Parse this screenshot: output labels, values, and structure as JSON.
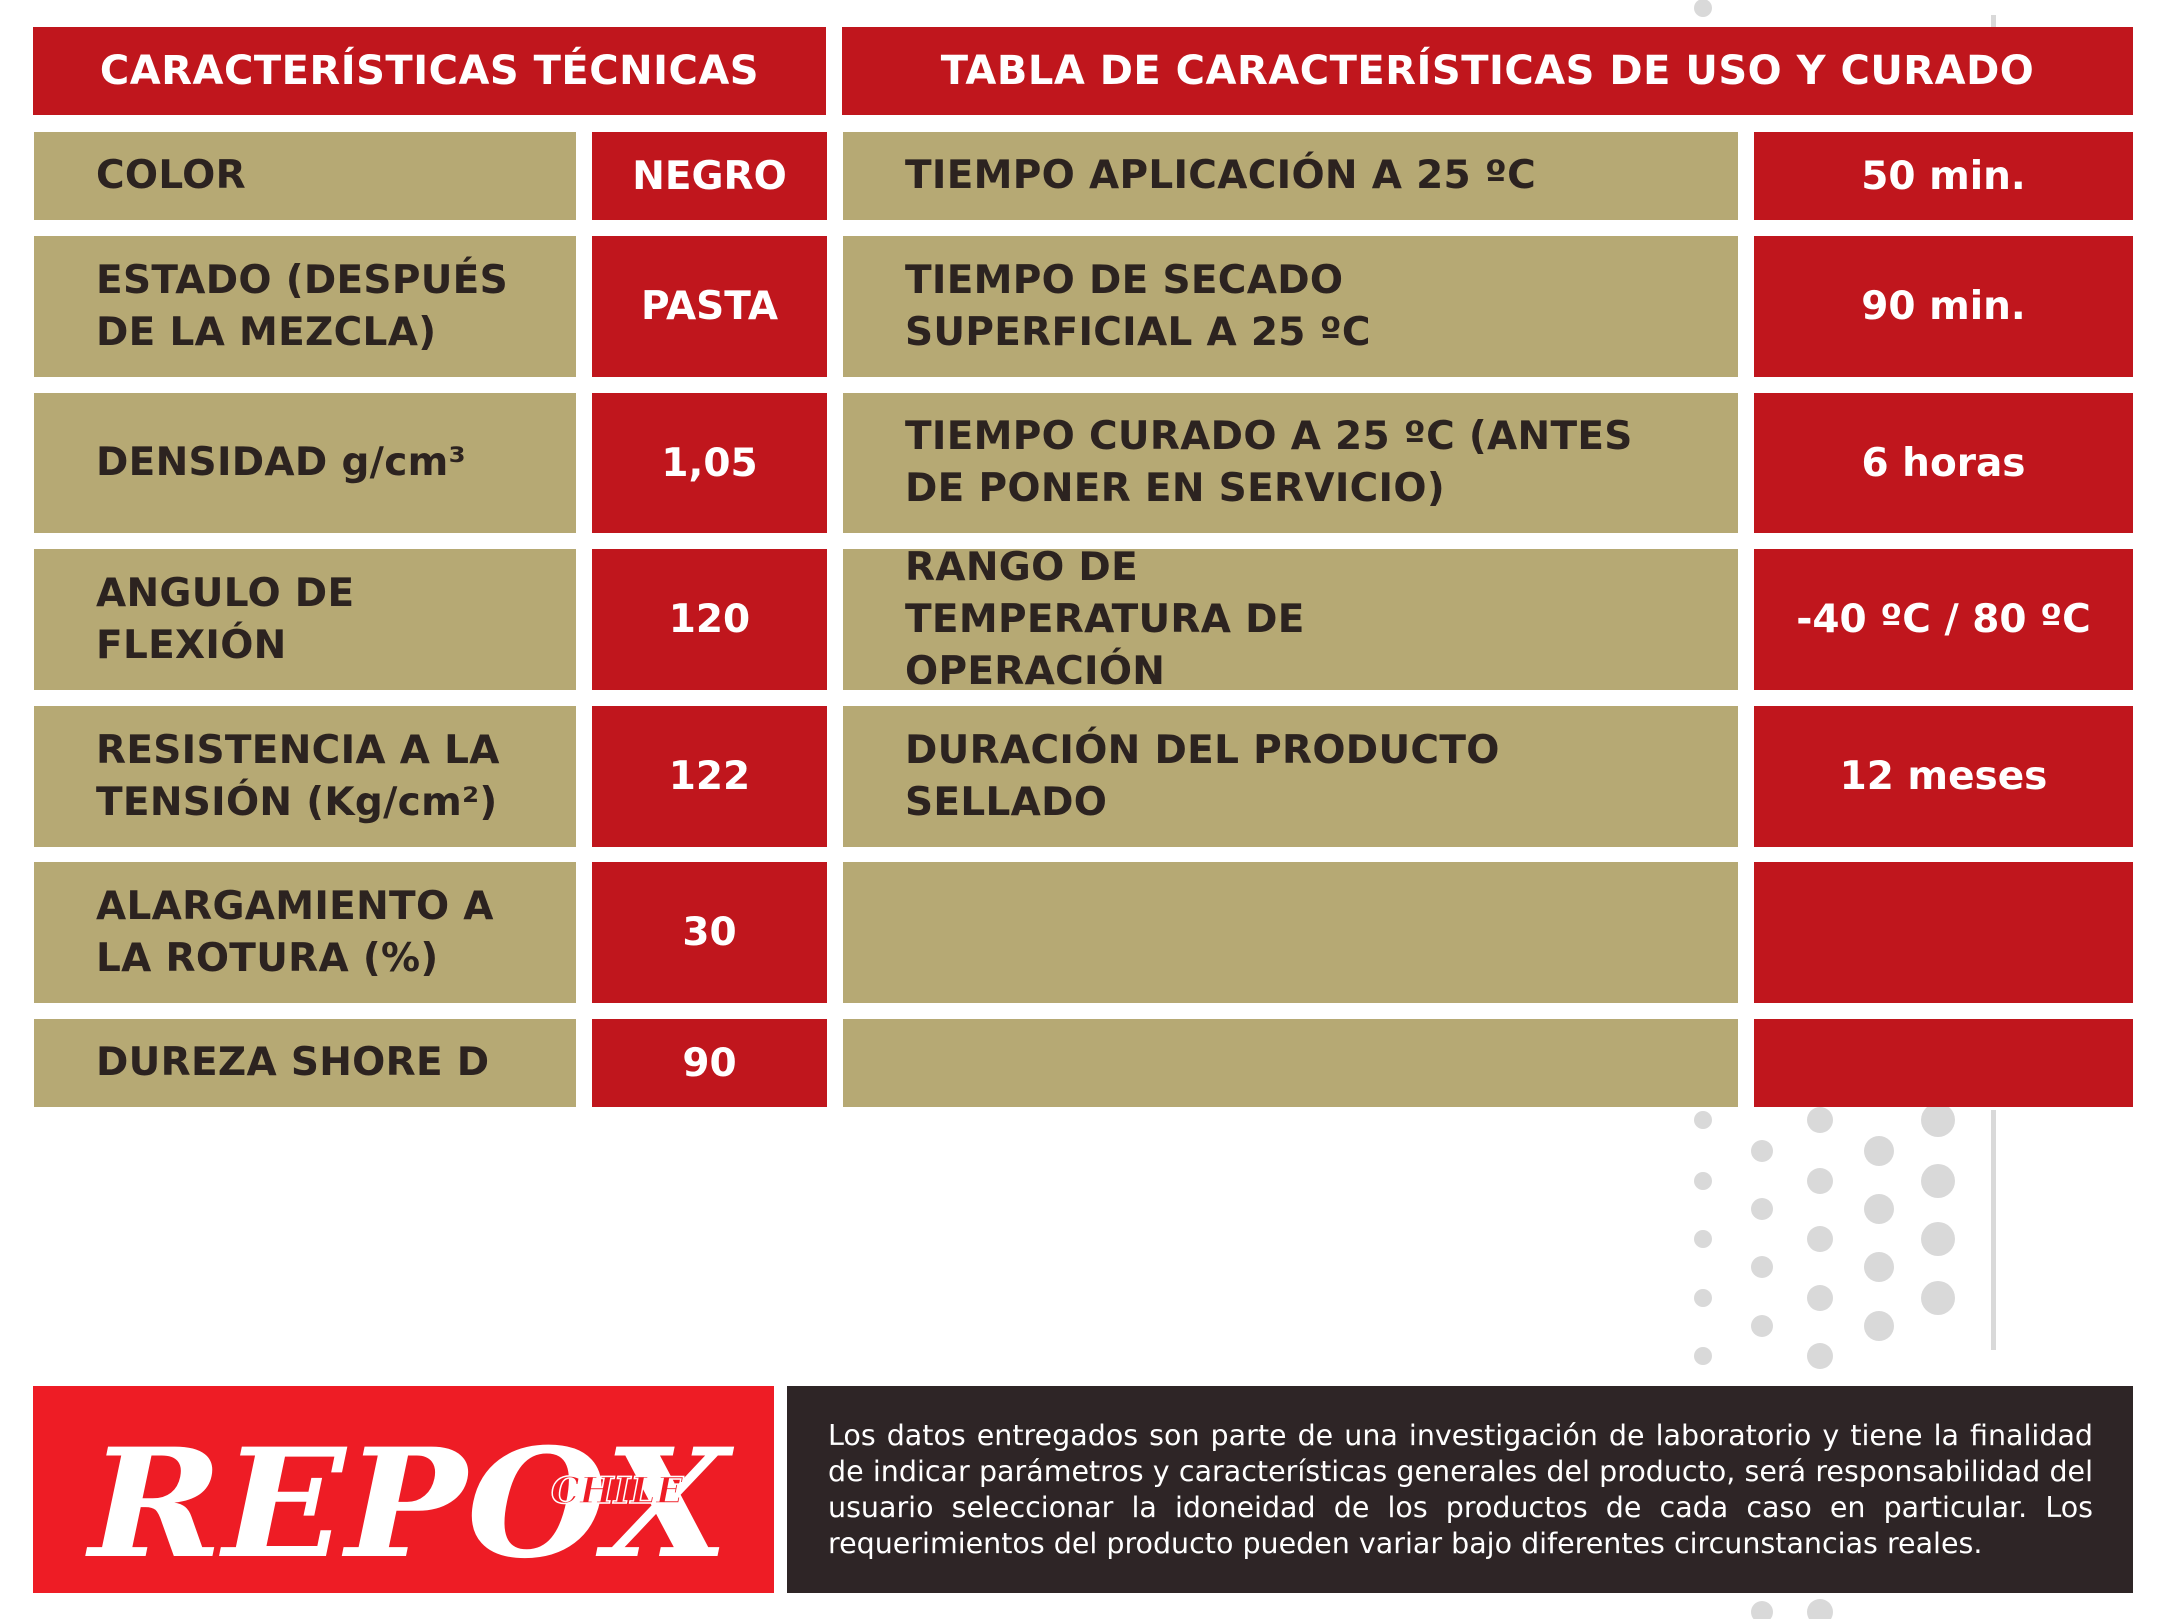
{
  "headers": {
    "technical": "CARACTERÍSTICAS TÉCNICAS",
    "usage": "TABLA DE CARACTERÍSTICAS DE USO Y CURADO"
  },
  "technical_rows": [
    {
      "label": "COLOR",
      "value": "NEGRO"
    },
    {
      "label": "ESTADO (DESPUÉS DE LA MEZCLA)",
      "value": "PASTA"
    },
    {
      "label": "DENSIDAD g/cm³",
      "value": "1,05"
    },
    {
      "label": "ANGULO DE FLEXIÓN",
      "value": "120"
    },
    {
      "label": "RESISTENCIA A LA TENSIÓN (Kg/cm²)",
      "value": "122"
    },
    {
      "label": "ALARGAMIENTO A LA ROTURA (%)",
      "value": "30"
    },
    {
      "label": "DUREZA SHORE D",
      "value": "90"
    }
  ],
  "usage_rows": [
    {
      "label": "TIEMPO APLICACIÓN A 25 ºC",
      "value": "50 min."
    },
    {
      "label": "TIEMPO DE SECADO SUPERFICIAL A 25 ºC",
      "value": "90 min."
    },
    {
      "label": "TIEMPO CURADO A 25 ºC (ANTES DE PONER EN SERVICIO)",
      "value": "6 horas"
    },
    {
      "label": "RANGO DE TEMPERATURA DE OPERACIÓN",
      "value": "-40 ºC / 80 ºC"
    },
    {
      "label": "DURACIÓN DEL PRODUCTO SELLADO",
      "value": "12 meses"
    },
    {
      "label": "",
      "value": ""
    },
    {
      "label": "",
      "value": ""
    }
  ],
  "brand": {
    "name": "REPOX",
    "sub": "CHILE"
  },
  "disclaimer": "Los datos entregados son parte de una investigación de laboratorio y tiene la finalidad de indicar parámetros y características generales del producto, será responsabilidad del usuario seleccionar la idoneidad de los productos de cada caso en particular. Los requerimientos del producto pueden variar bajo diferentes circunstancias reales.",
  "colors": {
    "red": "#c0161d",
    "brand_red": "#ee1c25",
    "khaki": "#b6a974",
    "dark": "#2e2526"
  }
}
